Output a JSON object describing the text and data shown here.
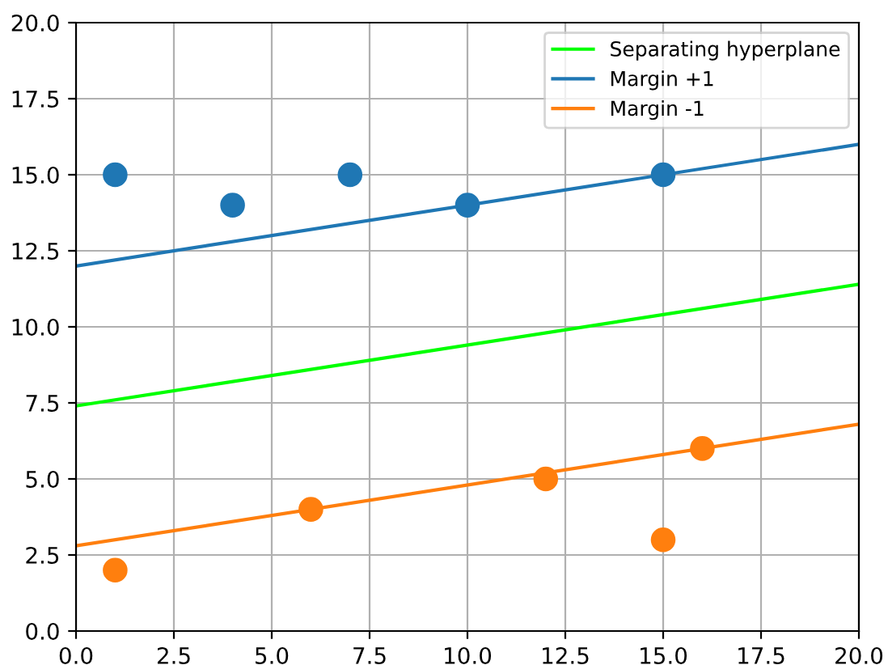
{
  "chart_data": {
    "type": "scatter",
    "xlim": [
      0,
      20
    ],
    "ylim": [
      0,
      20
    ],
    "xticks": [
      {
        "value": 0,
        "label": "0.0"
      },
      {
        "value": 2.5,
        "label": "2.5"
      },
      {
        "value": 5,
        "label": "5.0"
      },
      {
        "value": 7.5,
        "label": "7.5"
      },
      {
        "value": 10,
        "label": "10.0"
      },
      {
        "value": 12.5,
        "label": "12.5"
      },
      {
        "value": 15,
        "label": "15.0"
      },
      {
        "value": 17.5,
        "label": "17.5"
      },
      {
        "value": 20,
        "label": "20.0"
      }
    ],
    "yticks": [
      {
        "value": 0,
        "label": "0.0"
      },
      {
        "value": 2.5,
        "label": "2.5"
      },
      {
        "value": 5,
        "label": "5.0"
      },
      {
        "value": 7.5,
        "label": "7.5"
      },
      {
        "value": 10,
        "label": "10.0"
      },
      {
        "value": 12.5,
        "label": "12.5"
      },
      {
        "value": 15,
        "label": "15.0"
      },
      {
        "value": 17.5,
        "label": "17.5"
      },
      {
        "value": 20,
        "label": "20.0"
      }
    ],
    "grid": true,
    "legend": "top right",
    "series": [
      {
        "marker": "circle",
        "color": "#1f77b4",
        "x": [
          1,
          4,
          7,
          10,
          15
        ],
        "values": [
          15,
          14,
          15,
          14,
          15
        ]
      },
      {
        "marker": "circle",
        "color": "#ff7f0e",
        "x": [
          1,
          6,
          12,
          15,
          16
        ],
        "values": [
          2,
          4,
          5,
          3,
          6
        ]
      },
      {
        "type": "line",
        "name": "Separating hyperplane",
        "color": "#00ff00",
        "x": [
          0,
          20
        ],
        "values": [
          7.4,
          11.4
        ]
      },
      {
        "type": "line",
        "name": "Margin +1",
        "color": "#1f77b4",
        "x": [
          0,
          20
        ],
        "values": [
          12.0,
          16.0
        ]
      },
      {
        "type": "line",
        "name": "Margin -1",
        "color": "#ff7f0e",
        "x": [
          0,
          20
        ],
        "values": [
          2.8,
          6.8
        ]
      }
    ]
  }
}
